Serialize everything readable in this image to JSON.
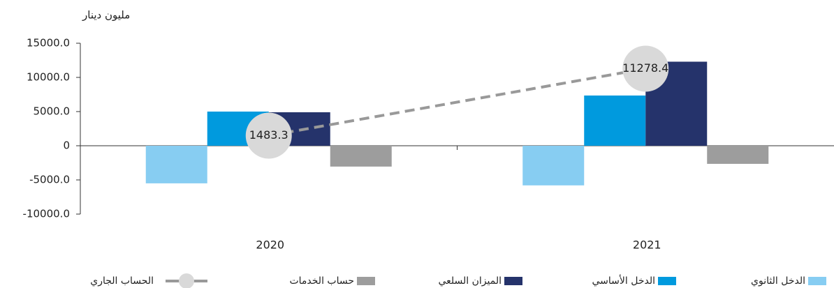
{
  "chart_data": {
    "type": "bar",
    "y_axis_label": "مليون دينار",
    "categories": [
      "2020",
      "2021"
    ],
    "series": [
      {
        "name": "الدخل الثانوي",
        "color": "#87cdf2",
        "type": "bar",
        "values": [
          -5500,
          -5800
        ]
      },
      {
        "name": "الدخل الأساسي",
        "color": "#009ade",
        "type": "bar",
        "values": [
          5000,
          7350
        ]
      },
      {
        "name": "الميزان السلعي",
        "color": "#25336b",
        "type": "bar",
        "values": [
          4900,
          12300
        ]
      },
      {
        "name": "حساب الخدمات",
        "color": "#9d9d9d",
        "type": "bar",
        "values": [
          -3050,
          -2650
        ]
      },
      {
        "name": "الحساب الجاري",
        "color": "#999999",
        "marker_color": "#d9d9d9",
        "type": "line",
        "values": [
          1483.3,
          11278.4
        ]
      }
    ],
    "ylim": [
      -10000,
      15000
    ],
    "yticks": [
      {
        "value": -10000,
        "label": "-10000.0"
      },
      {
        "value": -5000,
        "label": "-5000.0"
      },
      0,
      {
        "value": 5000,
        "label": "5000.0"
      },
      {
        "value": 10000,
        "label": "10000.0"
      },
      {
        "value": 15000,
        "label": "15000.0"
      }
    ],
    "legend": "bottom"
  }
}
